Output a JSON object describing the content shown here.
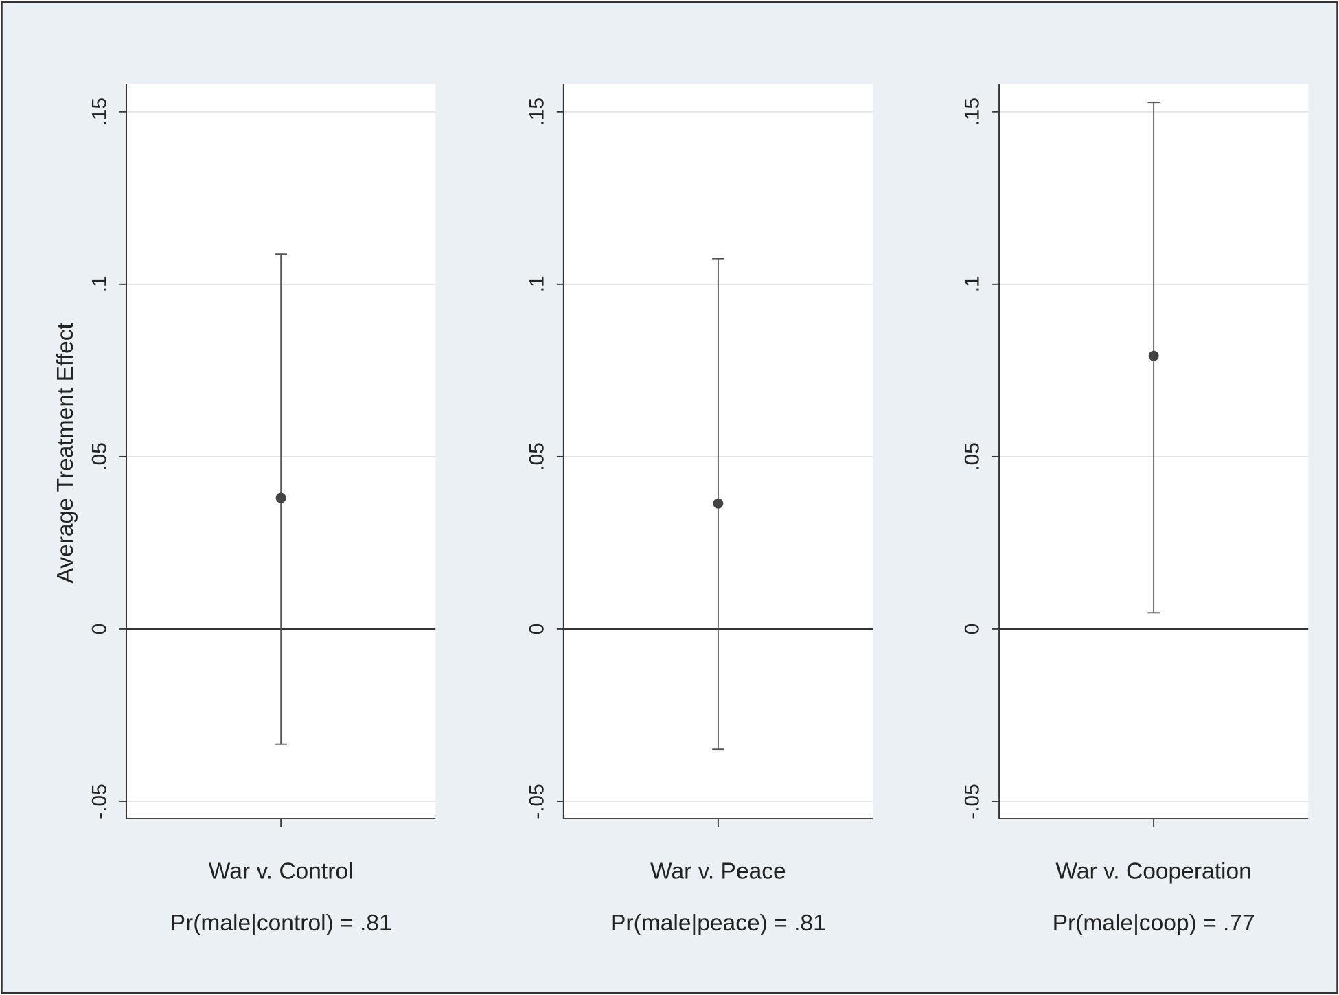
{
  "chart_data": [
    {
      "type": "errorbar",
      "y_label": "Average Treatment Effect",
      "categories": [
        "War v. Control"
      ],
      "note": "Pr(male|control) = .81",
      "values": [
        0.038
      ],
      "lower": [
        -0.0334
      ],
      "upper": [
        0.1087
      ],
      "ylim": [
        -0.055,
        0.158
      ],
      "yticks": [
        {
          "value": -0.05,
          "label": "-.05"
        },
        0,
        {
          "value": 0.05,
          "label": ".05"
        },
        {
          "value": 0.1,
          "label": ".1"
        },
        {
          "value": 0.15,
          "label": ".15"
        }
      ],
      "grid": true,
      "color": "#444444"
    },
    {
      "type": "errorbar",
      "categories": [
        "War v. Peace"
      ],
      "note": "Pr(male|peace) = .81",
      "values": [
        0.0364
      ],
      "lower": [
        -0.0349
      ],
      "upper": [
        0.1074
      ],
      "ylim": [
        -0.055,
        0.158
      ],
      "yticks": [
        {
          "value": -0.05,
          "label": "-.05"
        },
        0,
        {
          "value": 0.05,
          "label": ".05"
        },
        {
          "value": 0.1,
          "label": ".1"
        },
        {
          "value": 0.15,
          "label": ".15"
        }
      ],
      "grid": true,
      "color": "#444444"
    },
    {
      "type": "errorbar",
      "categories": [
        "War v. Cooperation"
      ],
      "note": "Pr(male|coop) = .77",
      "values": [
        0.0792
      ],
      "lower": [
        0.0047
      ],
      "upper": [
        0.1527
      ],
      "ylim": [
        -0.055,
        0.158
      ],
      "yticks": [
        {
          "value": -0.05,
          "label": "-.05"
        },
        0,
        {
          "value": 0.05,
          "label": ".05"
        },
        {
          "value": 0.1,
          "label": ".1"
        },
        {
          "value": 0.15,
          "label": ".15"
        }
      ],
      "grid": true,
      "color": "#444444"
    }
  ]
}
